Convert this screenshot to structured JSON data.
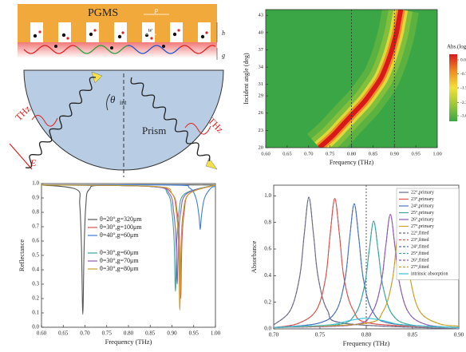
{
  "diagram": {
    "pgms": "PGMS",
    "period": "p",
    "width": "w",
    "height": "h",
    "gap": "g",
    "angle": "θ",
    "angle_sub": "int",
    "prism": "Prism",
    "thz_in": "THz",
    "thz_out": "THz",
    "field": "E"
  },
  "chart_data": [
    {
      "type": "heatmap",
      "xlabel": "Frequency (THz)",
      "ylabel": "Incident angle (deg)",
      "xlim": [
        0.6,
        1.0
      ],
      "xticks": [
        {
          "value": 0.6,
          "label": "0.60"
        },
        0.65,
        {
          "value": 0.7,
          "label": "0.70"
        },
        0.75,
        {
          "value": 0.8,
          "label": "0.80"
        },
        0.85,
        {
          "value": 0.9,
          "label": "0.90"
        },
        0.95,
        {
          "value": 1.0,
          "label": "1.00"
        }
      ],
      "ylim": [
        20,
        44
      ],
      "yticks": [
        20,
        23,
        26,
        29,
        31,
        34,
        37,
        40,
        43
      ],
      "x": [
        0.725,
        0.755,
        0.78,
        0.805,
        0.83,
        0.85,
        0.868,
        0.88,
        0.89,
        0.898,
        0.905,
        0.91,
        0.915
      ],
      "y": [
        20,
        22,
        24,
        26,
        28,
        30,
        32,
        34,
        36,
        38,
        40,
        42,
        44
      ],
      "vlines": [
        0.8,
        0.9
      ],
      "colorbar": {
        "title": "Abs.(log)",
        "lim": [
          -3.3,
          0.3
        ],
        "ticks": [
          {
            "value": 0,
            "label": "0.0"
          },
          -0.75,
          -1.5,
          -2.3,
          {
            "value": -3,
            "label": "-3.0"
          }
        ],
        "colors": [
          "#3aa645",
          "#9cc83a",
          "#f4e03a",
          "#f08a24",
          "#d7191c"
        ]
      }
    },
    {
      "type": "line",
      "xlabel": "Frequency (THz)",
      "ylabel": "Reflectance",
      "xlim": [
        0.6,
        1.0
      ],
      "xticks": [
        {
          "value": 0.6,
          "label": "0.60"
        },
        0.65,
        {
          "value": 0.7,
          "label": "0.70"
        },
        0.75,
        {
          "value": 0.8,
          "label": "0.80"
        },
        0.85,
        {
          "value": 0.9,
          "label": "0.90"
        },
        0.95,
        {
          "value": 1.0,
          "label": "1.00"
        }
      ],
      "ylim": [
        0,
        1
      ],
      "yticks": [
        {
          "value": 0,
          "label": "0.0"
        },
        0.1,
        0.2,
        0.3,
        0.4,
        0.5,
        0.6,
        0.7,
        0.8,
        0.9,
        {
          "value": 1,
          "label": "1.0"
        }
      ],
      "series": [
        {
          "name": "θ=20°,g=320μm",
          "color": "#555555",
          "x": [
            0.6,
            0.68,
            0.688,
            0.692,
            0.695,
            0.698,
            0.702,
            0.71,
            0.75,
            1.0
          ],
          "values": [
            0.99,
            0.96,
            0.85,
            0.55,
            0.09,
            0.55,
            0.85,
            0.96,
            0.99,
            0.99
          ]
        },
        {
          "name": "θ=30°,g=100μm",
          "color": "#d9534f",
          "x": [
            0.6,
            0.85,
            0.9,
            0.912,
            0.917,
            0.92,
            0.923,
            0.928,
            0.94,
            1.0
          ],
          "values": [
            0.99,
            0.98,
            0.93,
            0.8,
            0.6,
            0.2,
            0.6,
            0.8,
            0.93,
            0.99
          ]
        },
        {
          "name": "θ=40°,g=60μm",
          "color": "#3b7dd8",
          "x": [
            0.6,
            0.9,
            0.94,
            0.955,
            0.962,
            0.965,
            0.968,
            0.975,
            0.99,
            1.0
          ],
          "values": [
            0.99,
            0.99,
            0.97,
            0.9,
            0.78,
            0.68,
            0.78,
            0.9,
            0.97,
            0.98
          ]
        },
        {
          "name": "θ=30°,g=60μm",
          "color": "#3aa5a0",
          "x": [
            0.6,
            0.85,
            0.89,
            0.9,
            0.905,
            0.908,
            0.911,
            0.916,
            0.93,
            1.0
          ],
          "values": [
            0.99,
            0.98,
            0.93,
            0.8,
            0.6,
            0.25,
            0.6,
            0.8,
            0.93,
            0.99
          ]
        },
        {
          "name": "θ=30°,g=70μm",
          "color": "#8e5ab5",
          "x": [
            0.6,
            0.85,
            0.894,
            0.904,
            0.909,
            0.912,
            0.915,
            0.92,
            0.934,
            1.0
          ],
          "values": [
            0.99,
            0.98,
            0.93,
            0.8,
            0.62,
            0.3,
            0.62,
            0.8,
            0.93,
            0.99
          ]
        },
        {
          "name": "θ=30°,g=80μm",
          "color": "#c8a02a",
          "x": [
            0.6,
            0.86,
            0.9,
            0.91,
            0.915,
            0.918,
            0.921,
            0.926,
            0.94,
            1.0
          ],
          "values": [
            0.99,
            0.98,
            0.93,
            0.8,
            0.58,
            0.12,
            0.58,
            0.8,
            0.93,
            0.99
          ]
        }
      ]
    },
    {
      "type": "line",
      "xlabel": "Frequency (THz)",
      "ylabel": "Absorbance",
      "xlim": [
        0.7,
        0.9
      ],
      "xticks": [
        {
          "value": 0.7,
          "label": "0.70"
        },
        0.75,
        {
          "value": 0.8,
          "label": "0.80"
        },
        0.85,
        {
          "value": 0.9,
          "label": "0.90"
        }
      ],
      "ylim": [
        0,
        1.08
      ],
      "yticks": [
        {
          "value": 0,
          "label": "0.0"
        },
        0.2,
        0.4,
        0.6,
        0.8,
        {
          "value": 1,
          "label": "1.0"
        }
      ],
      "vlines": [
        0.8
      ],
      "series": [
        {
          "name": "22°,primary",
          "color": "#6b6b8a",
          "x": [
            0.7,
            0.718,
            0.728,
            0.733,
            0.738,
            0.743,
            0.748,
            0.758,
            0.778,
            0.9
          ],
          "values": [
            0.03,
            0.14,
            0.39,
            0.71,
            0.99,
            0.71,
            0.39,
            0.14,
            0.04,
            0.0
          ]
        },
        {
          "name": "23°,primary",
          "color": "#d9534f",
          "x": [
            0.7,
            0.726,
            0.746,
            0.756,
            0.761,
            0.766,
            0.771,
            0.776,
            0.786,
            0.806,
            0.9
          ],
          "values": [
            0.01,
            0.04,
            0.14,
            0.38,
            0.71,
            0.98,
            0.71,
            0.38,
            0.14,
            0.04,
            0.01
          ]
        },
        {
          "name": "24°,primary",
          "color": "#4a74b8",
          "x": [
            0.7,
            0.747,
            0.767,
            0.777,
            0.782,
            0.787,
            0.792,
            0.797,
            0.807,
            0.827,
            0.9
          ],
          "values": [
            0.01,
            0.04,
            0.13,
            0.37,
            0.68,
            0.94,
            0.68,
            0.37,
            0.13,
            0.04,
            0.01
          ]
        },
        {
          "name": "25°,primary",
          "color": "#3aa59a",
          "x": [
            0.7,
            0.768,
            0.788,
            0.798,
            0.803,
            0.808,
            0.813,
            0.818,
            0.828,
            0.848,
            0.9
          ],
          "values": [
            0.01,
            0.03,
            0.11,
            0.32,
            0.58,
            0.81,
            0.58,
            0.32,
            0.11,
            0.03,
            0.01
          ]
        },
        {
          "name": "26°,primary",
          "color": "#8e5ab5",
          "x": [
            0.7,
            0.786,
            0.806,
            0.816,
            0.821,
            0.826,
            0.831,
            0.836,
            0.846,
            0.866,
            0.9
          ],
          "values": [
            0.01,
            0.03,
            0.12,
            0.34,
            0.62,
            0.86,
            0.62,
            0.34,
            0.12,
            0.03,
            0.01
          ]
        },
        {
          "name": "27°,primary",
          "color": "#c9a227",
          "x": [
            0.7,
            0.798,
            0.818,
            0.828,
            0.833,
            0.838,
            0.843,
            0.848,
            0.858,
            0.878,
            0.9
          ],
          "values": [
            0.01,
            0.04,
            0.13,
            0.36,
            0.66,
            0.92,
            0.66,
            0.36,
            0.13,
            0.04,
            0.02
          ]
        },
        {
          "name": "22°,fitted",
          "color": "#6b6b8a",
          "dashed": true,
          "x": [
            0.7,
            0.718,
            0.728,
            0.733,
            0.738,
            0.743,
            0.748,
            0.758,
            0.778,
            0.9
          ],
          "values": [
            0.03,
            0.14,
            0.39,
            0.71,
            0.99,
            0.71,
            0.39,
            0.14,
            0.04,
            0.0
          ]
        },
        {
          "name": "23°,fitted",
          "color": "#d9534f",
          "dashed": true,
          "x": [
            0.7,
            0.726,
            0.746,
            0.756,
            0.761,
            0.766,
            0.771,
            0.776,
            0.786,
            0.806,
            0.9
          ],
          "values": [
            0.01,
            0.04,
            0.14,
            0.38,
            0.71,
            0.98,
            0.71,
            0.38,
            0.14,
            0.04,
            0.01
          ]
        },
        {
          "name": "24°,fitted",
          "color": "#4a74b8",
          "dashed": true,
          "x": [
            0.7,
            0.747,
            0.767,
            0.777,
            0.782,
            0.787,
            0.792,
            0.797,
            0.807,
            0.827,
            0.9
          ],
          "values": [
            0.01,
            0.04,
            0.13,
            0.37,
            0.68,
            0.94,
            0.68,
            0.37,
            0.13,
            0.04,
            0.01
          ]
        },
        {
          "name": "25°,fitted",
          "color": "#3aa59a",
          "dashed": true,
          "x": [
            0.7,
            0.768,
            0.788,
            0.798,
            0.803,
            0.808,
            0.813,
            0.818,
            0.828,
            0.848,
            0.9
          ],
          "values": [
            0.01,
            0.03,
            0.11,
            0.32,
            0.58,
            0.81,
            0.58,
            0.32,
            0.11,
            0.03,
            0.01
          ]
        },
        {
          "name": "26°,fitted",
          "color": "#8e5ab5",
          "dashed": true,
          "x": [
            0.7,
            0.786,
            0.806,
            0.816,
            0.821,
            0.826,
            0.831,
            0.836,
            0.846,
            0.866,
            0.9
          ],
          "values": [
            0.01,
            0.03,
            0.12,
            0.34,
            0.62,
            0.86,
            0.62,
            0.34,
            0.12,
            0.03,
            0.01
          ]
        },
        {
          "name": "27°,fitted",
          "color": "#c9a227",
          "dashed": true,
          "x": [
            0.7,
            0.798,
            0.818,
            0.828,
            0.833,
            0.838,
            0.843,
            0.848,
            0.858,
            0.878,
            0.9
          ],
          "values": [
            0.01,
            0.04,
            0.13,
            0.36,
            0.66,
            0.92,
            0.66,
            0.36,
            0.13,
            0.04,
            0.02
          ]
        },
        {
          "name": "intrinsic absorption",
          "color": "#33c3d6",
          "x": [
            0.7,
            0.76,
            0.78,
            0.8,
            0.82,
            0.84,
            0.9
          ],
          "values": [
            0.01,
            0.03,
            0.06,
            0.08,
            0.06,
            0.03,
            0.01
          ]
        }
      ]
    }
  ]
}
